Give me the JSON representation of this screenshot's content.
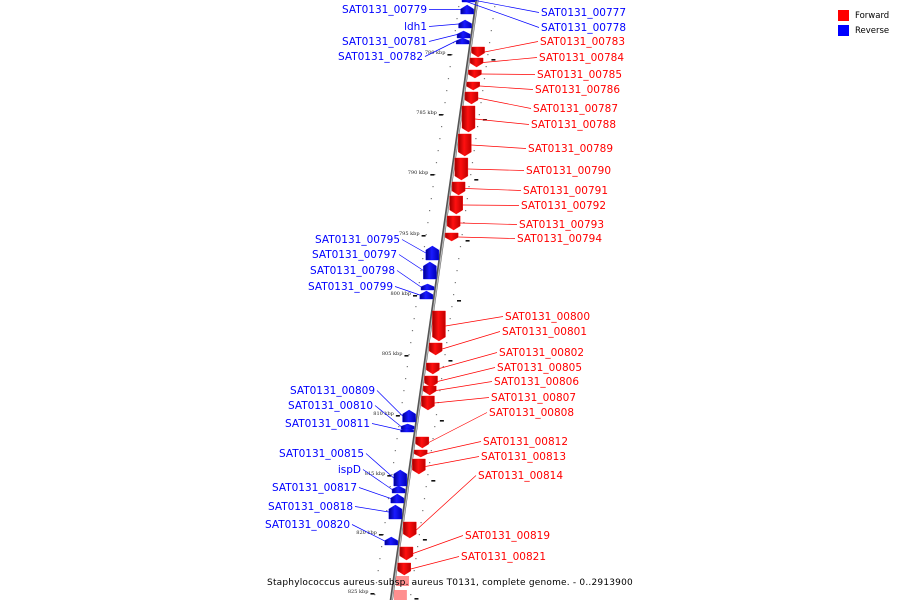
{
  "colors": {
    "forward": "#ff0000",
    "reverse": "#0000ff",
    "backbone": "#8a8a8a"
  },
  "legend": [
    {
      "label": "Forward",
      "color": "#ff0000"
    },
    {
      "label": "Reverse",
      "color": "#0000ff"
    }
  ],
  "caption": "Staphylococcus aureus subsp. aureus T0131, complete genome. - 0..2913900",
  "kbp_ticks": [
    "780 kbp",
    "785 kbp",
    "790 kbp",
    "795 kbp",
    "800 kbp",
    "805 kbp",
    "810 kbp",
    "815 kbp",
    "820 kbp",
    "825 kbp"
  ],
  "genes": {
    "reverse": [
      "SAT0131_00779",
      "ldh1",
      "SAT0131_00781",
      "SAT0131_00782",
      "SAT0131_00777",
      "SAT0131_00778",
      "SAT0131_00795",
      "SAT0131_00797",
      "SAT0131_00798",
      "SAT0131_00799",
      "SAT0131_00809",
      "SAT0131_00810",
      "SAT0131_00811",
      "SAT0131_00815",
      "ispD",
      "SAT0131_00817",
      "SAT0131_00818",
      "SAT0131_00820"
    ],
    "forward": [
      "SAT0131_00783",
      "SAT0131_00784",
      "SAT0131_00785",
      "SAT0131_00786",
      "SAT0131_00787",
      "SAT0131_00788",
      "SAT0131_00789",
      "SAT0131_00790",
      "SAT0131_00791",
      "SAT0131_00792",
      "SAT0131_00793",
      "SAT0131_00794",
      "SAT0131_00800",
      "SAT0131_00801",
      "SAT0131_00802",
      "SAT0131_00805",
      "SAT0131_00806",
      "SAT0131_00807",
      "SAT0131_00808",
      "SAT0131_00812",
      "SAT0131_00813",
      "SAT0131_00814",
      "SAT0131_00819",
      "SAT0131_00821"
    ]
  }
}
